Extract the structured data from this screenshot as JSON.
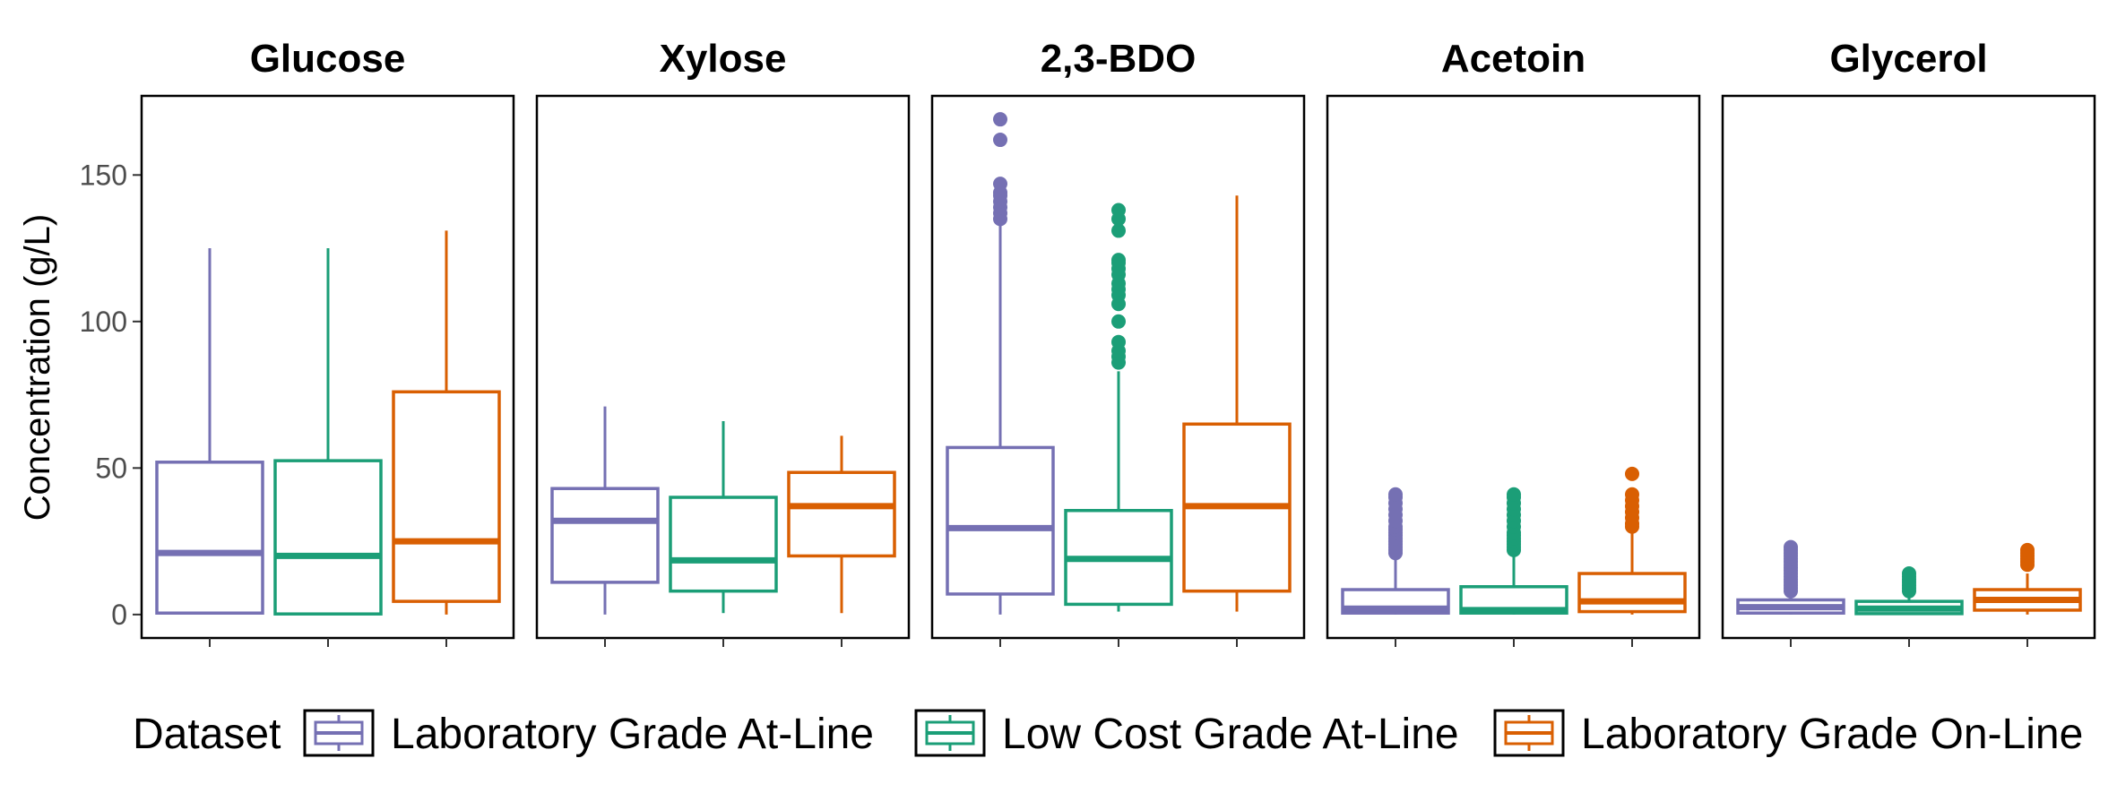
{
  "chart_data": {
    "type": "box",
    "ylabel": "Concentration (g/L)",
    "ylim": [
      -8,
      177
    ],
    "yticks": [
      0,
      50,
      100,
      150
    ],
    "grid": false,
    "legend": {
      "title": "Dataset",
      "position": "bottom",
      "entries": [
        "Laboratory Grade At-Line",
        "Low Cost Grade At-Line",
        "Laboratory Grade On-Line"
      ]
    },
    "colors": {
      "Laboratory Grade At-Line": "#7570b3",
      "Low Cost Grade At-Line": "#1b9e77",
      "Laboratory Grade On-Line": "#d95f02"
    },
    "facets": [
      {
        "title": "Glucose",
        "boxes": [
          {
            "series": "Laboratory Grade At-Line",
            "min": 0.5,
            "q1": 0.5,
            "median": 21,
            "q3": 52,
            "max": 125,
            "outliers": []
          },
          {
            "series": "Low Cost Grade At-Line",
            "min": 0.2,
            "q1": 0.2,
            "median": 20,
            "q3": 52.5,
            "max": 125,
            "outliers": []
          },
          {
            "series": "Laboratory Grade On-Line",
            "min": 0,
            "q1": 4.5,
            "median": 25,
            "q3": 76,
            "max": 131,
            "outliers": []
          }
        ]
      },
      {
        "title": "Xylose",
        "boxes": [
          {
            "series": "Laboratory Grade At-Line",
            "min": 0,
            "q1": 11,
            "median": 32,
            "q3": 43,
            "max": 71,
            "outliers": []
          },
          {
            "series": "Low Cost Grade At-Line",
            "min": 0.5,
            "q1": 8,
            "median": 18.5,
            "q3": 40,
            "max": 66,
            "outliers": []
          },
          {
            "series": "Laboratory Grade On-Line",
            "min": 0.5,
            "q1": 20,
            "median": 37,
            "q3": 48.5,
            "max": 61,
            "outliers": []
          }
        ]
      },
      {
        "title": "2,3-BDO",
        "boxes": [
          {
            "series": "Laboratory Grade At-Line",
            "min": 0,
            "q1": 7,
            "median": 29.5,
            "q3": 57,
            "max": 134,
            "outliers": [
              135,
              137,
              139,
              141,
              143,
              144,
              147,
              162,
              169
            ]
          },
          {
            "series": "Low Cost Grade At-Line",
            "min": 1,
            "q1": 3.5,
            "median": 19,
            "q3": 35.5,
            "max": 83,
            "outliers": [
              86,
              88,
              90,
              93,
              100,
              106,
              109,
              111,
              113,
              116,
              118,
              120,
              121,
              131,
              135,
              138
            ]
          },
          {
            "series": "Laboratory Grade On-Line",
            "min": 1,
            "q1": 8,
            "median": 37,
            "q3": 65,
            "max": 143,
            "outliers": []
          }
        ]
      },
      {
        "title": "Acetoin",
        "boxes": [
          {
            "series": "Laboratory Grade At-Line",
            "min": 0,
            "q1": 0.5,
            "median": 2,
            "q3": 8.5,
            "max": 20,
            "outliers": [
              21,
              22,
              23,
              24,
              25,
              26,
              27,
              28,
              29,
              30,
              32,
              34,
              36,
              38,
              40,
              41
            ]
          },
          {
            "series": "Low Cost Grade At-Line",
            "min": 0,
            "q1": 0.5,
            "median": 1.5,
            "q3": 9.5,
            "max": 21,
            "outliers": [
              22,
              23,
              24,
              25,
              26,
              27,
              28,
              30,
              32,
              34,
              36,
              38,
              40,
              41
            ]
          },
          {
            "series": "Laboratory Grade On-Line",
            "min": 0,
            "q1": 1,
            "median": 4.5,
            "q3": 14,
            "max": 28,
            "outliers": [
              30,
              31,
              33,
              35,
              37,
              39,
              41,
              48
            ]
          }
        ]
      },
      {
        "title": "Glycerol",
        "boxes": [
          {
            "series": "Laboratory Grade At-Line",
            "min": 0,
            "q1": 0.5,
            "median": 2.5,
            "q3": 5,
            "max": 7,
            "outliers": [
              8,
              9,
              10,
              11,
              12,
              13,
              14,
              15,
              16,
              17,
              18,
              19,
              20,
              21,
              22,
              23
            ]
          },
          {
            "series": "Low Cost Grade At-Line",
            "min": 0,
            "q1": 0.3,
            "median": 2,
            "q3": 4.5,
            "max": 7,
            "outliers": [
              8,
              9,
              10,
              11,
              12,
              13,
              14
            ]
          },
          {
            "series": "Laboratory Grade On-Line",
            "min": 0,
            "q1": 1.5,
            "median": 5,
            "q3": 8.5,
            "max": 14,
            "outliers": [
              17,
              18,
              19,
              20,
              21,
              22
            ]
          }
        ]
      }
    ]
  }
}
